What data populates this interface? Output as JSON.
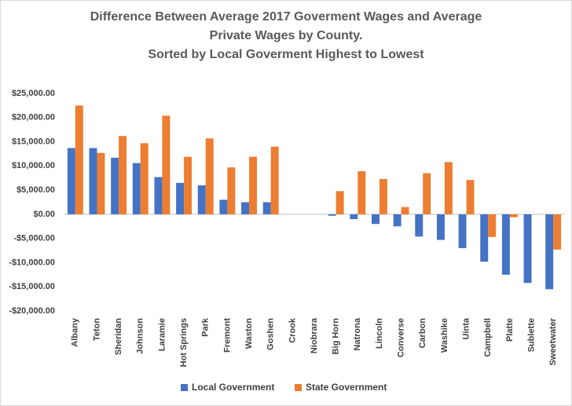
{
  "chart_data": {
    "type": "bar",
    "title": [
      "Difference Between Average 2017 Goverment Wages and Average",
      "Private Wages by County.",
      "Sorted by Local Goverment Highest to Lowest"
    ],
    "categories": [
      "Albany",
      "Teton",
      "Sheridan",
      "Johnson",
      "Laramie",
      "Hot Springs",
      "Park",
      "Fremont",
      "Waston",
      "Goshen",
      "Crook",
      "Niobrara",
      "Big Horn",
      "Natrona",
      "Lincoln",
      "Converse",
      "Carbon",
      "Washike",
      "Uinta",
      "Campbell",
      "Platte",
      "Sublette",
      "Sweetwater"
    ],
    "series": [
      {
        "name": "Local Government",
        "color": "#4472c4",
        "values": [
          13700,
          13700,
          11700,
          10600,
          7700,
          6500,
          6000,
          3000,
          2500,
          2500,
          0,
          0,
          -300,
          -1000,
          -2000,
          -2500,
          -4600,
          -5300,
          -7000,
          -9800,
          -12500,
          -14200,
          -15500
        ]
      },
      {
        "name": "State Government",
        "color": "#ed7d31",
        "values": [
          22500,
          12700,
          16200,
          14700,
          20400,
          11900,
          15700,
          9700,
          11900,
          14000,
          0,
          0,
          4800,
          8900,
          7300,
          1500,
          8500,
          10800,
          7100,
          -4700,
          -600,
          0,
          -7300
        ]
      }
    ],
    "ylim": [
      -20000,
      25000
    ],
    "yticks": [
      {
        "value": -20000,
        "label": "-$20,000.00"
      },
      {
        "value": -15000,
        "label": "-$15,000.00"
      },
      {
        "value": -10000,
        "label": "-$10,000.00"
      },
      {
        "value": -5000,
        "label": "-$5,000.00"
      },
      {
        "value": 0,
        "label": "$0.00"
      },
      {
        "value": 5000,
        "label": "$5,000.00"
      },
      {
        "value": 10000,
        "label": "$10,000.00"
      },
      {
        "value": 15000,
        "label": "$15,000.00"
      },
      {
        "value": 20000,
        "label": "$20,000.00"
      },
      {
        "value": 25000,
        "label": "$25,000.00"
      }
    ],
    "grid": false,
    "legend": "bottom"
  }
}
